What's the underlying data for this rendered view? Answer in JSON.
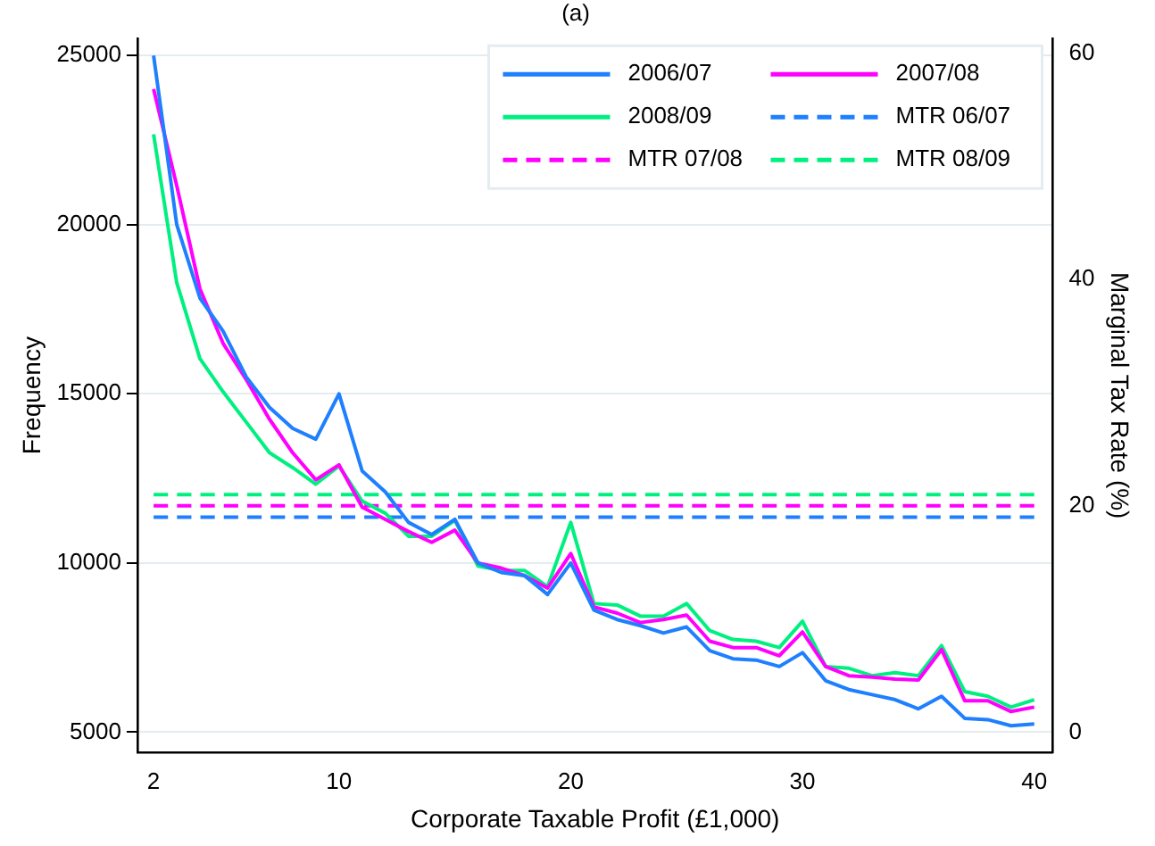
{
  "chart_data": {
    "type": "line",
    "title": "(a)",
    "xlabel": "Corporate Taxable Profit (£1,000)",
    "ylabel": "Frequency",
    "y2label": "Marginal Tax Rate (%)",
    "x": [
      2,
      3,
      4,
      5,
      6,
      7,
      8,
      9,
      10,
      11,
      12,
      13,
      14,
      15,
      16,
      17,
      18,
      19,
      20,
      21,
      22,
      23,
      24,
      25,
      26,
      27,
      28,
      29,
      30,
      31,
      32,
      33,
      34,
      35,
      36,
      37,
      38,
      39,
      40
    ],
    "xlim": [
      1.3,
      40.8
    ],
    "xticks": [
      2,
      10,
      20,
      30,
      40
    ],
    "ylim": [
      4400,
      25500
    ],
    "yticks": [
      5000,
      10000,
      15000,
      20000,
      25000
    ],
    "y2lim": [
      -1.8,
      61.3
    ],
    "y2ticks": [
      0,
      20,
      40,
      60
    ],
    "grid": "y",
    "legend": "top right",
    "line_style": "solid",
    "marker": "none",
    "series": [
      {
        "name": "2006/07",
        "color": "#1e7fff",
        "values": [
          25000,
          20000,
          17830,
          16850,
          15500,
          14600,
          13980,
          13660,
          15000,
          12720,
          12100,
          11200,
          10840,
          11290,
          10000,
          9720,
          9630,
          9070,
          10000,
          8610,
          8330,
          8150,
          7930,
          8110,
          7410,
          7170,
          7130,
          6940,
          7350,
          6520,
          6260,
          6110,
          5960,
          5690,
          6060,
          5410,
          5370,
          5190,
          5240
        ]
      },
      {
        "name": "2007/08",
        "color": "#ff00ff",
        "values": [
          24010,
          21150,
          18100,
          16490,
          15420,
          14250,
          13260,
          12460,
          12900,
          11650,
          11290,
          10930,
          10610,
          10970,
          10000,
          9850,
          9630,
          9260,
          10280,
          8700,
          8520,
          8240,
          8330,
          8460,
          7690,
          7500,
          7500,
          7260,
          7960,
          6940,
          6670,
          6630,
          6570,
          6540,
          7440,
          5930,
          5930,
          5610,
          5740
        ]
      },
      {
        "name": "2008/09",
        "color": "#00f080",
        "values": [
          22670,
          18280,
          16040,
          15060,
          14160,
          13260,
          12820,
          12330,
          12870,
          11830,
          11470,
          10790,
          10790,
          11260,
          9910,
          9780,
          9780,
          9300,
          11200,
          8800,
          8760,
          8430,
          8430,
          8800,
          8000,
          7740,
          7690,
          7500,
          8280,
          6940,
          6890,
          6670,
          6760,
          6670,
          7560,
          6200,
          6060,
          5740,
          5960
        ]
      },
      {
        "name": "MTR 06/07",
        "color": "#1e7fff",
        "axis": "y2",
        "line_style": "dashed",
        "values": [
          19,
          19,
          19,
          19,
          19,
          19,
          19,
          19,
          19,
          19,
          19,
          19,
          19,
          19,
          19,
          19,
          19,
          19,
          19,
          19,
          19,
          19,
          19,
          19,
          19,
          19,
          19,
          19,
          19,
          19,
          19,
          19,
          19,
          19,
          19,
          19,
          19,
          19,
          19
        ]
      },
      {
        "name": "MTR 07/08",
        "color": "#ff00ff",
        "axis": "y2",
        "line_style": "dashed",
        "values": [
          20,
          20,
          20,
          20,
          20,
          20,
          20,
          20,
          20,
          20,
          20,
          20,
          20,
          20,
          20,
          20,
          20,
          20,
          20,
          20,
          20,
          20,
          20,
          20,
          20,
          20,
          20,
          20,
          20,
          20,
          20,
          20,
          20,
          20,
          20,
          20,
          20,
          20,
          20
        ]
      },
      {
        "name": "MTR 08/09",
        "color": "#00f080",
        "axis": "y2",
        "line_style": "dashed",
        "values": [
          21,
          21,
          21,
          21,
          21,
          21,
          21,
          21,
          21,
          21,
          21,
          21,
          21,
          21,
          21,
          21,
          21,
          21,
          21,
          21,
          21,
          21,
          21,
          21,
          21,
          21,
          21,
          21,
          21,
          21,
          21,
          21,
          21,
          21,
          21,
          21,
          21,
          21,
          21
        ]
      }
    ]
  }
}
